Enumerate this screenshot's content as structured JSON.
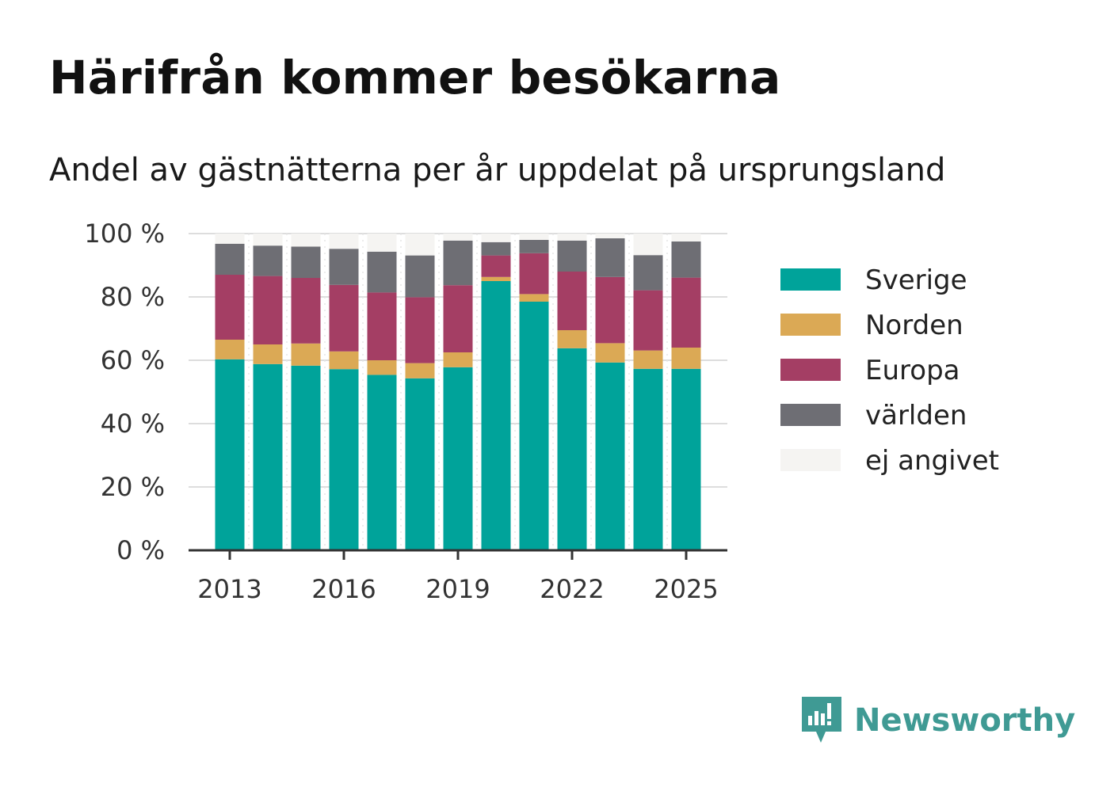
{
  "header": {
    "title": "Härifrån kommer besökarna",
    "subtitle": "Andel av gästnätterna per år uppdelat på ursprungsland"
  },
  "brand": {
    "name": "Newsworthy",
    "color": "#3f9a94",
    "icon": "newsworthy-logo-icon"
  },
  "chart_data": {
    "type": "bar",
    "stacked": true,
    "title": "Härifrån kommer besökarna",
    "subtitle": "Andel av gästnätterna per år uppdelat på ursprungsland",
    "xlabel": "",
    "ylabel": "",
    "ylim": [
      0,
      100
    ],
    "yticks": [
      0,
      20,
      40,
      60,
      80,
      100
    ],
    "ytick_labels": [
      "0 %",
      "20 %",
      "40 %",
      "60 %",
      "80 %",
      "100 %"
    ],
    "xtick_labels": [
      "2013",
      "2016",
      "2019",
      "2022",
      "2025"
    ],
    "categories": [
      "2013",
      "2014",
      "2015",
      "2016",
      "2017",
      "2018",
      "2019",
      "2020",
      "2021",
      "2022",
      "2023",
      "2024",
      "2025"
    ],
    "grid": true,
    "legend_position": "right",
    "series": [
      {
        "name": "Sverige",
        "color": "#00a39a",
        "values": [
          60.3,
          58.8,
          58.3,
          57.2,
          55.4,
          54.3,
          57.8,
          85.0,
          78.5,
          63.8,
          59.3,
          57.3,
          57.3
        ]
      },
      {
        "name": "Norden",
        "color": "#dba955",
        "values": [
          6.2,
          6.2,
          7.0,
          5.6,
          4.6,
          4.8,
          4.7,
          1.3,
          2.4,
          5.7,
          6.1,
          5.8,
          6.7
        ]
      },
      {
        "name": "Europa",
        "color": "#a43e64",
        "values": [
          20.5,
          21.6,
          20.7,
          21.0,
          21.4,
          20.8,
          21.2,
          6.8,
          12.9,
          18.5,
          20.9,
          19.0,
          22.1
        ]
      },
      {
        "name": "världen",
        "color": "#6e6e74",
        "values": [
          9.8,
          9.6,
          9.9,
          11.4,
          12.9,
          13.2,
          14.1,
          4.2,
          4.2,
          9.8,
          12.2,
          11.1,
          11.4
        ]
      },
      {
        "name": "ej angivet",
        "color": "#f5f4f2",
        "values": [
          3.2,
          3.8,
          4.1,
          4.8,
          5.7,
          6.9,
          2.2,
          2.7,
          2.0,
          2.2,
          1.5,
          6.8,
          2.5
        ]
      }
    ]
  }
}
